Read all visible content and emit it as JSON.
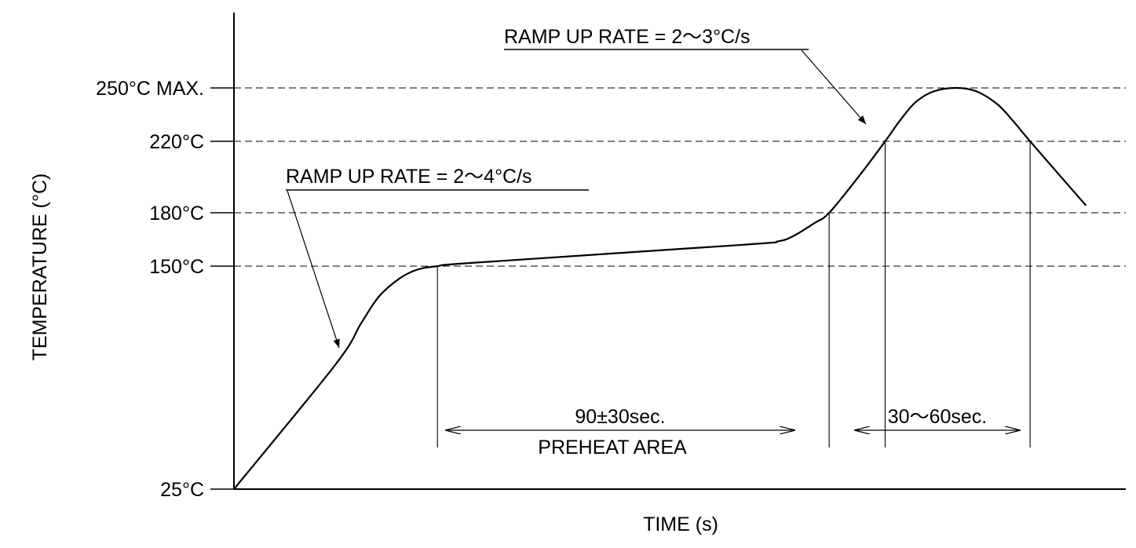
{
  "chart_data": {
    "type": "line",
    "xlabel": "TIME (s)",
    "ylabel": "TEMPERATURE (°C)",
    "y_ticks": [
      {
        "value": 25,
        "label": "25°C"
      },
      {
        "value": 150,
        "label": "150°C"
      },
      {
        "value": 180,
        "label": "180°C"
      },
      {
        "value": 220,
        "label": "220°C"
      },
      {
        "value": 250,
        "label": "250°C MAX."
      }
    ],
    "grid": "dashed lines at 150, 180, 220 and 250 °C",
    "series": [
      {
        "points": [
          {
            "x": 0,
            "y": 25
          },
          {
            "x": 40,
            "y": 95
          },
          {
            "x": 50,
            "y": 118
          },
          {
            "x": 57,
            "y": 133
          },
          {
            "x": 65,
            "y": 143
          },
          {
            "x": 72,
            "y": 148
          },
          {
            "x": 80,
            "y": 150
          },
          {
            "x": 95,
            "y": 152
          },
          {
            "x": 200,
            "y": 162
          },
          {
            "x": 214,
            "y": 164
          },
          {
            "x": 220,
            "y": 167
          },
          {
            "x": 228,
            "y": 174
          },
          {
            "x": 234,
            "y": 180
          },
          {
            "x": 246,
            "y": 201
          },
          {
            "x": 256,
            "y": 220
          },
          {
            "x": 262,
            "y": 232
          },
          {
            "x": 268,
            "y": 242
          },
          {
            "x": 275,
            "y": 248
          },
          {
            "x": 284,
            "y": 250
          },
          {
            "x": 292,
            "y": 248
          },
          {
            "x": 300,
            "y": 241
          },
          {
            "x": 306,
            "y": 232
          },
          {
            "x": 313,
            "y": 220
          },
          {
            "x": 335,
            "y": 184
          }
        ]
      }
    ],
    "annotations": [
      {
        "text": "RAMP UP RATE = 2〜4°C/s"
      },
      {
        "text": "RAMP UP RATE = 2〜3°C/s"
      },
      {
        "text": "90±30sec."
      },
      {
        "text": "PREHEAT AREA"
      },
      {
        "text": "30〜60sec."
      }
    ]
  }
}
